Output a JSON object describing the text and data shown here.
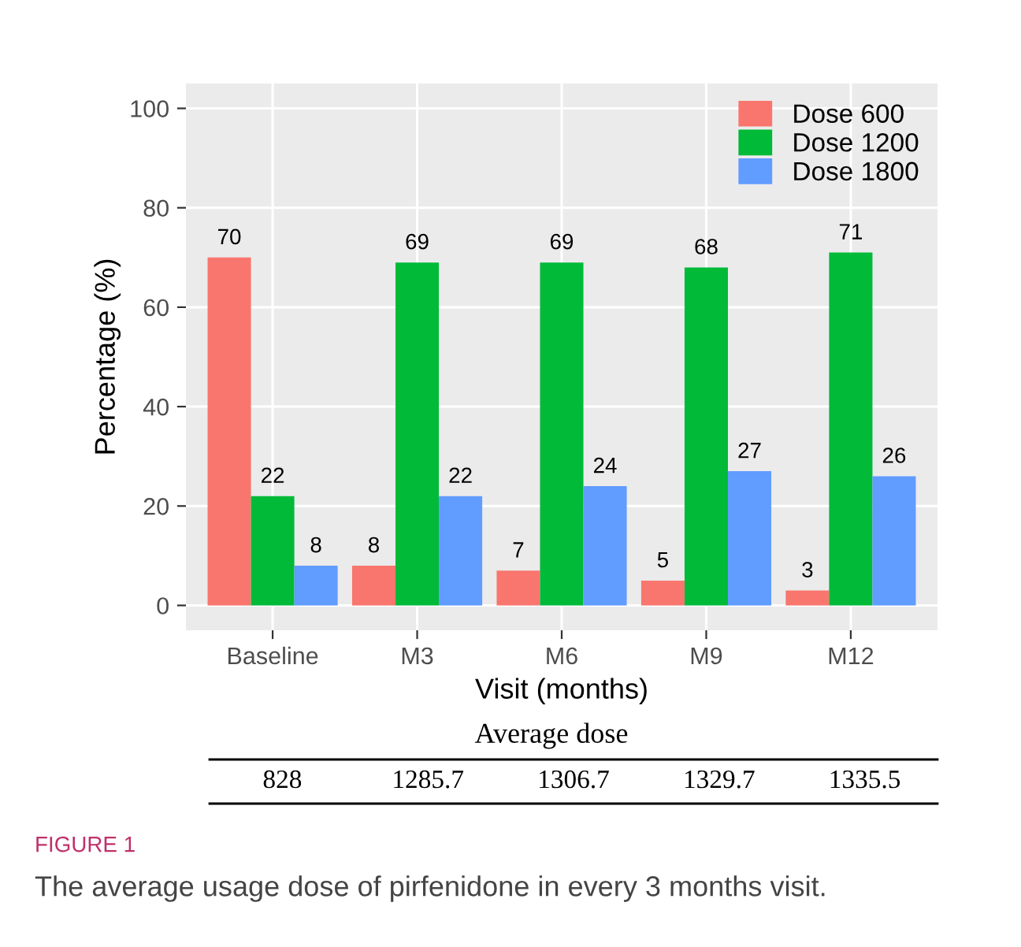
{
  "chart_data": {
    "type": "bar",
    "xlabel": "Visit (months)",
    "ylabel": "Percentage (%)",
    "categories": [
      "Baseline",
      "M3",
      "M6",
      "M9",
      "M12"
    ],
    "series": [
      {
        "name": "Dose 600",
        "color": "#f8766d",
        "values": [
          70,
          8,
          7,
          5,
          3
        ]
      },
      {
        "name": "Dose 1200",
        "color": "#00ba38",
        "values": [
          22,
          69,
          69,
          68,
          71
        ]
      },
      {
        "name": "Dose 1800",
        "color": "#619cff",
        "values": [
          8,
          22,
          24,
          27,
          26
        ]
      }
    ],
    "ylim": [
      -5,
      105
    ],
    "yticks": [
      0,
      20,
      40,
      60,
      80,
      100
    ],
    "grid": true,
    "legend": "top right",
    "data_labels": true,
    "annotations": [
      "Average dose",
      "828",
      "1285.7",
      "1306.7",
      "1329.7",
      "1335.5",
      "FIGURE 1",
      "The average usage dose of pirfenidone in every 3 months visit."
    ]
  }
}
